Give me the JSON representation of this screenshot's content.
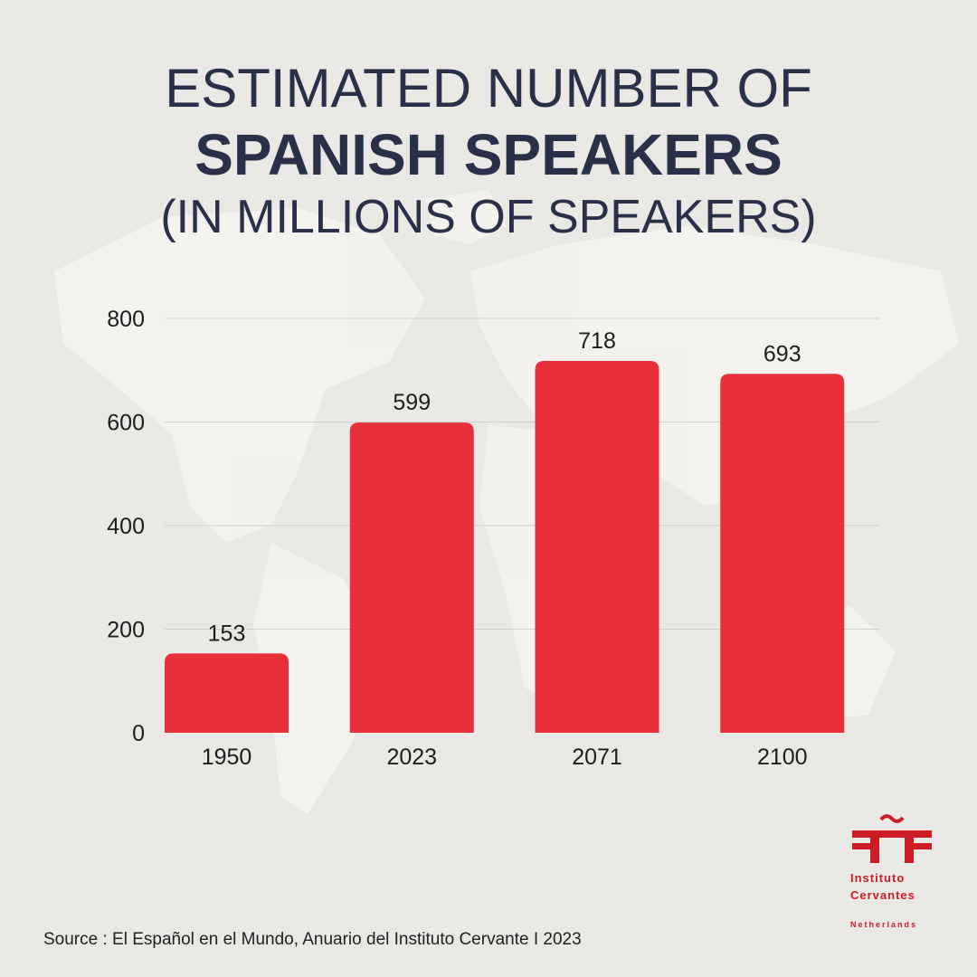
{
  "title": {
    "line1": "ESTIMATED NUMBER OF",
    "line2": "SPANISH SPEAKERS",
    "line3": "(IN MILLIONS OF SPEAKERS)"
  },
  "chart_data": {
    "type": "bar",
    "categories": [
      "1950",
      "2023",
      "2071",
      "2100"
    ],
    "values": [
      153,
      599,
      718,
      693
    ],
    "data_labels": [
      "153",
      "599",
      "718",
      "693"
    ],
    "yticks": [
      0,
      200,
      400,
      600,
      800
    ],
    "ylim": [
      0,
      800
    ],
    "grid": true,
    "legend": "none",
    "bar_color": "#e8303a"
  },
  "source": "Source :  El Español en el Mundo, Anuario del Instituto Cervante I 2023",
  "logo": {
    "line1": "Instituto",
    "line2": "Cervantes",
    "line3": "Netherlands",
    "color": "#cc1d26"
  }
}
